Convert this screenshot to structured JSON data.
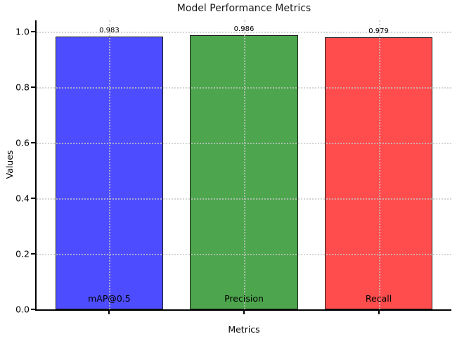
{
  "chart_data": {
    "type": "bar",
    "title": "Model Performance Metrics",
    "xlabel": "Metrics",
    "ylabel": "Values",
    "categories": [
      "mAP@0.5",
      "Precision",
      "Recall"
    ],
    "values": [
      0.983,
      0.986,
      0.979
    ],
    "value_labels": [
      "0.983",
      "0.986",
      "0.979"
    ],
    "bar_colors": [
      "#4D4DFF",
      "#4DA64D",
      "#FF4D4D"
    ],
    "bar_edge_color": "#1F1F1F",
    "ylim": [
      0,
      1.04
    ],
    "xlim": [
      -0.54,
      2.54
    ],
    "bar_width": 0.8,
    "ytick_values": [
      0.0,
      0.2,
      0.4,
      0.6,
      0.8,
      1.0
    ],
    "ytick_labels": [
      "0.0",
      "0.2",
      "0.4",
      "0.6",
      "0.8",
      "1.0"
    ],
    "grid": "dotted, light gray, horizontal at y-ticks and vertical at bar centers, drawn over bars",
    "legend": "none",
    "spines": "left and bottom only"
  }
}
